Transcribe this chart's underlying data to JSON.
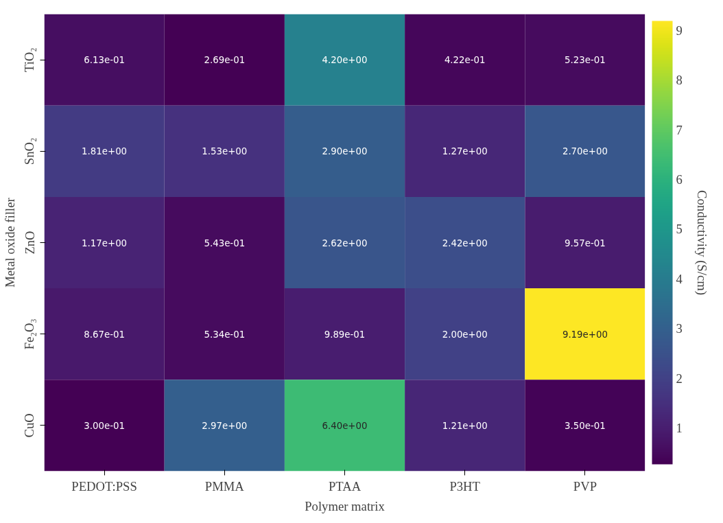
{
  "chart_data": {
    "type": "heatmap",
    "xlabel": "Polymer matrix",
    "ylabel": "Metal oxide filler",
    "clabel": "Conductivity (S/cm)",
    "categories": [
      "PEDOT:PSS",
      "PMMA",
      "PTAA",
      "P3HT",
      "PVP"
    ],
    "y_categories": [
      "TiO₂",
      "SnO₂",
      "ZnO",
      "Fe₂O₃",
      "CuO"
    ],
    "cells": [
      [
        0.613,
        0.269,
        4.2,
        0.422,
        0.523
      ],
      [
        1.81,
        1.53,
        2.9,
        1.27,
        2.7
      ],
      [
        1.17,
        0.543,
        2.62,
        2.42,
        0.957
      ],
      [
        0.867,
        0.534,
        0.989,
        2.0,
        9.19
      ],
      [
        0.3,
        2.97,
        6.4,
        1.21,
        0.35
      ]
    ],
    "cell_labels": [
      [
        "6.13e-01",
        "2.69e-01",
        "4.20e+00",
        "4.22e-01",
        "5.23e-01"
      ],
      [
        "1.81e+00",
        "1.53e+00",
        "2.90e+00",
        "1.27e+00",
        "2.70e+00"
      ],
      [
        "1.17e+00",
        "5.43e-01",
        "2.62e+00",
        "2.42e+00",
        "9.57e-01"
      ],
      [
        "8.67e-01",
        "5.34e-01",
        "9.89e-01",
        "2.00e+00",
        "9.19e+00"
      ],
      [
        "3.00e-01",
        "2.97e+00",
        "6.40e+00",
        "1.21e+00",
        "3.50e-01"
      ]
    ],
    "clim": [
      0.269,
      9.19
    ],
    "cticks": [
      1,
      2,
      3,
      4,
      5,
      6,
      7,
      8,
      9
    ]
  }
}
